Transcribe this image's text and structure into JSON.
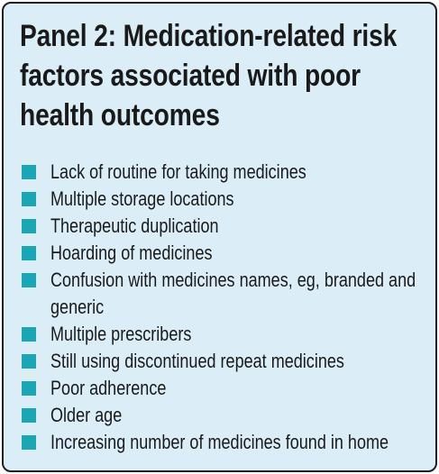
{
  "panel": {
    "title": "Panel 2: Medication-related risk factors associated with poor health outcomes",
    "items": [
      "Lack of routine for taking medicines",
      "Multiple storage locations",
      "Therapeutic duplication",
      "Hoarding of medicines",
      "Confusion with medicines names, eg, branded and generic",
      "Multiple prescribers",
      "Still using discontinued repeat medicines",
      "Poor adherence",
      "Older age",
      "Increasing number of medicines found in home"
    ]
  },
  "colors": {
    "background": "#dbeef8",
    "bullet": "#1aa6b4",
    "border": "#1f1f1f"
  }
}
